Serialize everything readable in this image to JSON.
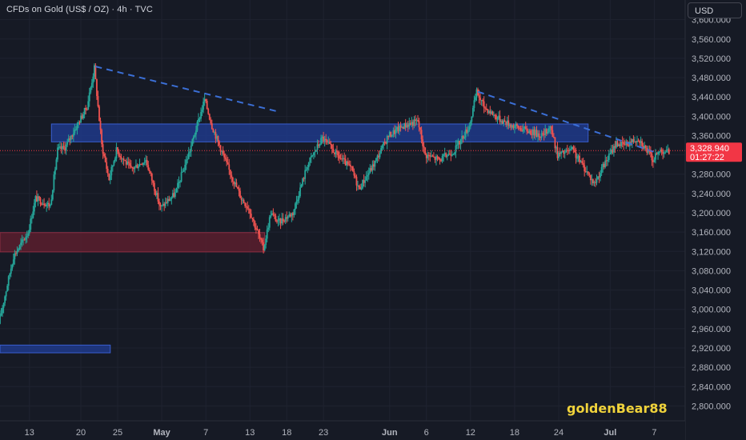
{
  "header": {
    "title": "CFDs on Gold (US$ / OZ) · 4h · TVC",
    "currency_button": "USD"
  },
  "watermark": "goldenBear88",
  "colors": {
    "background": "#161a25",
    "grid": "#1f2330",
    "up": "#26a69a",
    "down": "#ef5350",
    "zone_blue_fill": "#1f3a8a",
    "zone_blue_stroke": "#3a5fd0",
    "zone_red_fill": "#5b1f2e",
    "zone_red_stroke": "#8c2e42",
    "trendline": "#3b6fd6",
    "price_tag": "#f23645"
  },
  "chart_data": {
    "type": "candlestick",
    "symbol": "CFDs on Gold (US$ / OZ)",
    "timeframe": "4h",
    "y_axis": {
      "ylim": [
        2770,
        3635
      ],
      "ticks": [
        3600,
        3560,
        3520,
        3480,
        3440,
        3400,
        3360,
        3320,
        3280,
        3240,
        3200,
        3160,
        3120,
        3080,
        3040,
        3000,
        2960,
        2920,
        2880,
        2840,
        2800
      ],
      "tick_labels": [
        "3,600.000",
        "3,560.000",
        "3,520.000",
        "3,480.000",
        "3,440.000",
        "3,400.000",
        "3,360.000",
        "3,320.000",
        "3,280.000",
        "3,240.000",
        "3,200.000",
        "3,160.000",
        "3,120.000",
        "3,080.000",
        "3,040.000",
        "3,000.000",
        "2,960.000",
        "2,920.000",
        "2,880.000",
        "2,840.000",
        "2,800.000"
      ]
    },
    "x_axis": {
      "date_range": [
        "2025-04-09",
        "2025-07-10"
      ],
      "ticks": [
        {
          "date": "2025-04-13",
          "label": "13"
        },
        {
          "date": "2025-04-20",
          "label": "20"
        },
        {
          "date": "2025-04-25",
          "label": "25"
        },
        {
          "date": "2025-05-01",
          "label": "May"
        },
        {
          "date": "2025-05-07",
          "label": "7"
        },
        {
          "date": "2025-05-13",
          "label": "13"
        },
        {
          "date": "2025-05-18",
          "label": "18"
        },
        {
          "date": "2025-05-23",
          "label": "23"
        },
        {
          "date": "2025-06-01",
          "label": "Jun"
        },
        {
          "date": "2025-06-06",
          "label": "6"
        },
        {
          "date": "2025-06-12",
          "label": "12"
        },
        {
          "date": "2025-06-18",
          "label": "18"
        },
        {
          "date": "2025-06-24",
          "label": "24"
        },
        {
          "date": "2025-07-01",
          "label": "Jul"
        },
        {
          "date": "2025-07-07",
          "label": "7"
        }
      ]
    },
    "price_path": [
      {
        "date": "2025-04-09",
        "price": 2970
      },
      {
        "date": "2025-04-11",
        "price": 3110
      },
      {
        "date": "2025-04-13",
        "price": 3160
      },
      {
        "date": "2025-04-14",
        "price": 3230
      },
      {
        "date": "2025-04-16",
        "price": 3215
      },
      {
        "date": "2025-04-17",
        "price": 3330
      },
      {
        "date": "2025-04-18",
        "price": 3335
      },
      {
        "date": "2025-04-21",
        "price": 3420
      },
      {
        "date": "2025-04-22",
        "price": 3500
      },
      {
        "date": "2025-04-23",
        "price": 3340
      },
      {
        "date": "2025-04-24",
        "price": 3270
      },
      {
        "date": "2025-04-25",
        "price": 3330
      },
      {
        "date": "2025-04-27",
        "price": 3290
      },
      {
        "date": "2025-04-29",
        "price": 3310
      },
      {
        "date": "2025-05-01",
        "price": 3210
      },
      {
        "date": "2025-05-03",
        "price": 3240
      },
      {
        "date": "2025-05-05",
        "price": 3330
      },
      {
        "date": "2025-05-07",
        "price": 3435
      },
      {
        "date": "2025-05-08",
        "price": 3380
      },
      {
        "date": "2025-05-09",
        "price": 3340
      },
      {
        "date": "2025-05-10",
        "price": 3300
      },
      {
        "date": "2025-05-12",
        "price": 3230
      },
      {
        "date": "2025-05-13",
        "price": 3210
      },
      {
        "date": "2025-05-15",
        "price": 3125
      },
      {
        "date": "2025-05-16",
        "price": 3200
      },
      {
        "date": "2025-05-17",
        "price": 3180
      },
      {
        "date": "2025-05-19",
        "price": 3200
      },
      {
        "date": "2025-05-21",
        "price": 3300
      },
      {
        "date": "2025-05-23",
        "price": 3355
      },
      {
        "date": "2025-05-25",
        "price": 3320
      },
      {
        "date": "2025-05-27",
        "price": 3290
      },
      {
        "date": "2025-05-28",
        "price": 3250
      },
      {
        "date": "2025-05-30",
        "price": 3300
      },
      {
        "date": "2025-06-01",
        "price": 3360
      },
      {
        "date": "2025-06-03",
        "price": 3380
      },
      {
        "date": "2025-06-05",
        "price": 3390
      },
      {
        "date": "2025-06-06",
        "price": 3320
      },
      {
        "date": "2025-06-08",
        "price": 3310
      },
      {
        "date": "2025-06-10",
        "price": 3330
      },
      {
        "date": "2025-06-12",
        "price": 3380
      },
      {
        "date": "2025-06-13",
        "price": 3450
      },
      {
        "date": "2025-06-14",
        "price": 3420
      },
      {
        "date": "2025-06-16",
        "price": 3395
      },
      {
        "date": "2025-06-18",
        "price": 3380
      },
      {
        "date": "2025-06-20",
        "price": 3370
      },
      {
        "date": "2025-06-22",
        "price": 3360
      },
      {
        "date": "2025-06-23",
        "price": 3380
      },
      {
        "date": "2025-06-24",
        "price": 3320
      },
      {
        "date": "2025-06-26",
        "price": 3330
      },
      {
        "date": "2025-06-28",
        "price": 3285
      },
      {
        "date": "2025-06-29",
        "price": 3260
      },
      {
        "date": "2025-06-30",
        "price": 3290
      },
      {
        "date": "2025-07-02",
        "price": 3345
      },
      {
        "date": "2025-07-03",
        "price": 3340
      },
      {
        "date": "2025-07-05",
        "price": 3355
      },
      {
        "date": "2025-07-07",
        "price": 3310
      },
      {
        "date": "2025-07-08",
        "price": 3330
      },
      {
        "date": "2025-07-09",
        "price": 3326
      }
    ],
    "zones": [
      {
        "kind": "resistance",
        "color": "blue",
        "from": "2025-04-16",
        "to": "2025-06-28",
        "low": 3347,
        "high": 3384
      },
      {
        "kind": "demand",
        "color": "red",
        "from": "2025-04-09",
        "to": "2025-05-15",
        "low": 3119,
        "high": 3159
      },
      {
        "kind": "support",
        "color": "blue",
        "from": "2025-04-09",
        "to": "2025-04-24",
        "low": 2910,
        "high": 2926
      }
    ],
    "trendlines": [
      {
        "from": {
          "date": "2025-04-22",
          "price": 3503
        },
        "to": {
          "date": "2025-05-17",
          "price": 3409
        },
        "style": "dashed"
      },
      {
        "from": {
          "date": "2025-06-13",
          "price": 3451
        },
        "to": {
          "date": "2025-07-07",
          "price": 3326
        },
        "style": "dashed"
      }
    ],
    "current_price": {
      "value": 3328.94,
      "label": "3,328.940",
      "countdown": "01:27:22"
    }
  }
}
